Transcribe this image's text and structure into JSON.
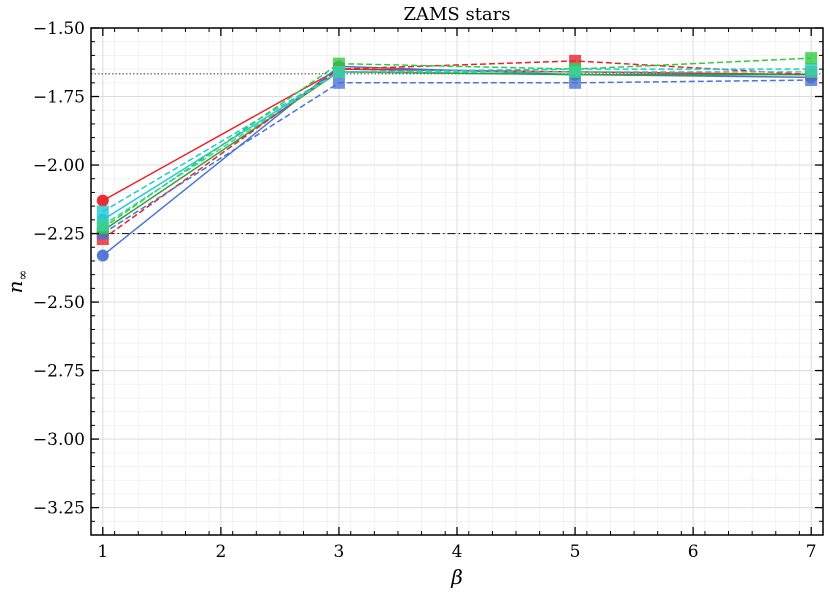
{
  "chart_data": {
    "type": "line",
    "title": "ZAMS stars",
    "xlabel": "β",
    "ylabel_main": "n",
    "ylabel_sub": "∞",
    "xlim": [
      0.9,
      7.1
    ],
    "ylim": [
      -3.35,
      -1.5
    ],
    "xticks": [
      1,
      2,
      3,
      4,
      5,
      6,
      7
    ],
    "xtick_labels": [
      "1",
      "2",
      "3",
      "4",
      "5",
      "6",
      "7"
    ],
    "yticks": [
      -1.5,
      -1.75,
      -2.0,
      -2.25,
      -2.5,
      -2.75,
      -3.0,
      -3.25
    ],
    "ytick_labels": [
      "−1.50",
      "−1.75",
      "−2.00",
      "−2.25",
      "−2.50",
      "−2.75",
      "−3.00",
      "−3.25"
    ],
    "grid": true,
    "reference_lines": [
      {
        "y": -1.667,
        "style": "dotted",
        "color": "#555555"
      },
      {
        "y": -2.25,
        "style": "dashdot",
        "color": "#222222"
      }
    ],
    "series": [
      {
        "color": "#e8232a",
        "style": "solid",
        "marker": "circle",
        "x": [
          1,
          3,
          5,
          7
        ],
        "y": [
          -2.13,
          -1.65,
          -1.66,
          -1.67
        ]
      },
      {
        "color": "#4a74d6",
        "style": "solid",
        "marker": "circle",
        "x": [
          1,
          3,
          5,
          7
        ],
        "y": [
          -2.33,
          -1.64,
          -1.67,
          -1.68
        ]
      },
      {
        "color": "#22c8d6",
        "style": "solid",
        "marker": "circle",
        "x": [
          1,
          3,
          5,
          7
        ],
        "y": [
          -2.2,
          -1.66,
          -1.67,
          -1.67
        ]
      },
      {
        "color": "#2e9e38",
        "style": "solid",
        "marker": "circle",
        "x": [
          1,
          3,
          5,
          7
        ],
        "y": [
          -2.24,
          -1.66,
          -1.67,
          -1.67
        ]
      },
      {
        "color": "#e8232a",
        "style": "dashed",
        "marker": "square",
        "x": [
          1,
          3,
          5,
          7
        ],
        "y": [
          -2.27,
          -1.65,
          -1.62,
          -1.67
        ]
      },
      {
        "color": "#4a74d6",
        "style": "dashed",
        "marker": "square",
        "x": [
          1,
          3,
          5,
          7
        ],
        "y": [
          -2.25,
          -1.7,
          -1.7,
          -1.69
        ]
      },
      {
        "color": "#22c8d6",
        "style": "dashed",
        "marker": "square",
        "x": [
          1,
          3,
          5,
          7
        ],
        "y": [
          -2.17,
          -1.66,
          -1.65,
          -1.65
        ]
      },
      {
        "color": "#2fcd3e",
        "style": "dashed",
        "marker": "square",
        "x": [
          1,
          3,
          5,
          7
        ],
        "y": [
          -2.23,
          -1.63,
          -1.65,
          -1.61
        ]
      },
      {
        "color": "#3fd0a0",
        "style": "dashed",
        "marker": "square",
        "x": [
          1,
          3,
          5,
          7
        ],
        "y": [
          -2.22,
          -1.66,
          -1.66,
          -1.66
        ]
      }
    ]
  }
}
